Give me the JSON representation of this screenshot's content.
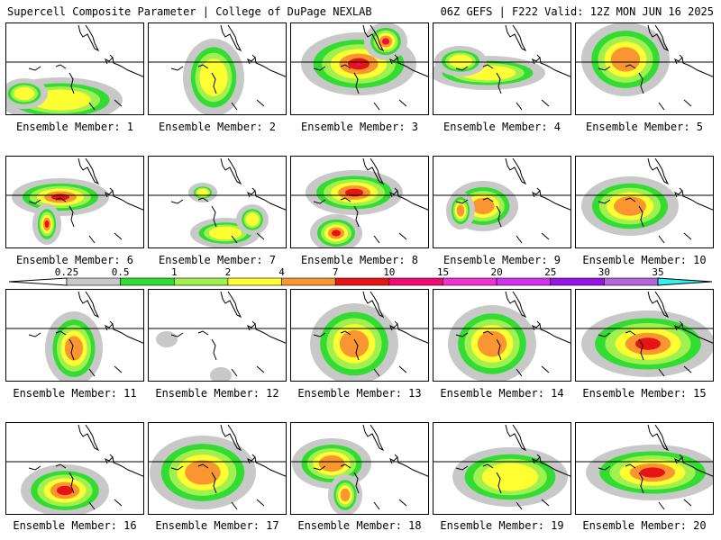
{
  "header": {
    "left": "Supercell Composite Parameter | College of DuPage NEXLAB",
    "right": "06Z GEFS | F222 Valid: 12Z MON JUN 16 2025"
  },
  "legend": {
    "ticks": [
      "0.25",
      "0.5",
      "1",
      "2",
      "4",
      "7",
      "10",
      "15",
      "20",
      "25",
      "30",
      "35"
    ],
    "colors": [
      "#ffffff",
      "#c8c8c8",
      "#32dc32",
      "#a0f050",
      "#ffff32",
      "#fa9632",
      "#e61414",
      "#f00a78",
      "#f032d2",
      "#d232f0",
      "#9614e6",
      "#b464dc",
      "#32f0f0"
    ]
  },
  "palette": {
    "gray": "#c8c8c8",
    "green": "#32dc32",
    "light_green": "#a0f050",
    "yellow": "#ffff32",
    "orange": "#fa9632",
    "red": "#e61414",
    "magenta": "#f00a78"
  },
  "members": [
    {
      "label": "Ensemble Member: 1",
      "peak": "yellow"
    },
    {
      "label": "Ensemble Member: 2",
      "peak": "yellow"
    },
    {
      "label": "Ensemble Member: 3",
      "peak": "magenta"
    },
    {
      "label": "Ensemble Member: 4",
      "peak": "yellow"
    },
    {
      "label": "Ensemble Member: 5",
      "peak": "orange"
    },
    {
      "label": "Ensemble Member: 6",
      "peak": "red"
    },
    {
      "label": "Ensemble Member: 7",
      "peak": "yellow"
    },
    {
      "label": "Ensemble Member: 8",
      "peak": "red"
    },
    {
      "label": "Ensemble Member: 9",
      "peak": "orange"
    },
    {
      "label": "Ensemble Member: 10",
      "peak": "orange"
    },
    {
      "label": "Ensemble Member: 11",
      "peak": "orange"
    },
    {
      "label": "Ensemble Member: 12",
      "peak": "gray"
    },
    {
      "label": "Ensemble Member: 13",
      "peak": "orange"
    },
    {
      "label": "Ensemble Member: 14",
      "peak": "orange"
    },
    {
      "label": "Ensemble Member: 15",
      "peak": "red"
    },
    {
      "label": "Ensemble Member: 16",
      "peak": "red"
    },
    {
      "label": "Ensemble Member: 17",
      "peak": "orange"
    },
    {
      "label": "Ensemble Member: 18",
      "peak": "orange"
    },
    {
      "label": "Ensemble Member: 19",
      "peak": "yellow"
    },
    {
      "label": "Ensemble Member: 20",
      "peak": "red"
    }
  ]
}
